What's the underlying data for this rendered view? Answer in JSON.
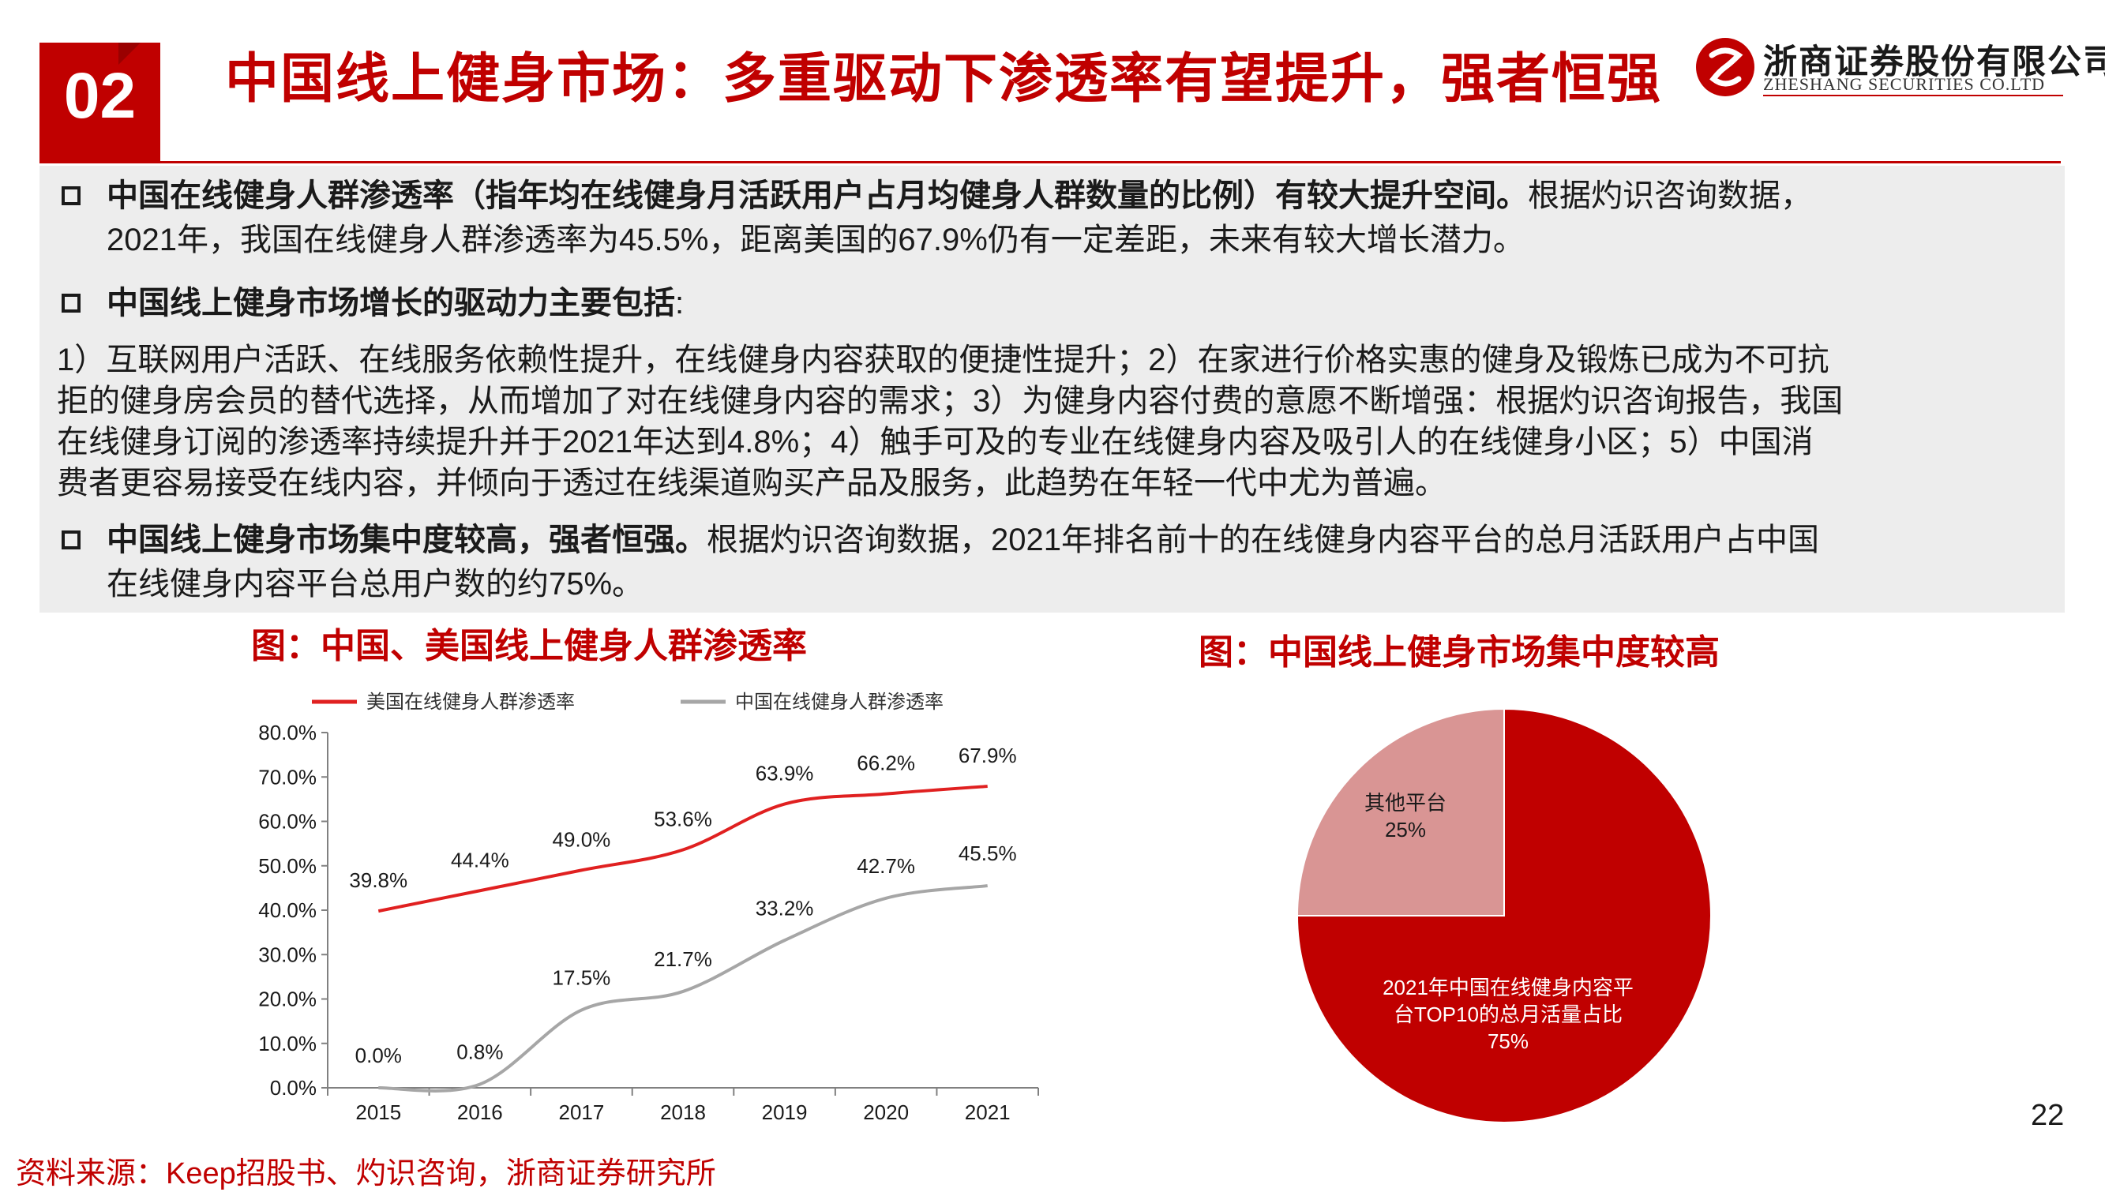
{
  "section_number": "02",
  "title": "中国线上健身市场：多重驱动下渗透率有望提升，强者恒强",
  "logo": {
    "name_cn": "浙商证券股份有限公司",
    "name_en": "ZHESHANG SECURITIES CO.LTD"
  },
  "bullet1": {
    "bold": "中国在线健身人群渗透率（指年均在线健身月活跃用户占月均健身人群数量的比例）有较大提升空间。",
    "text_a": "根据灼识咨询数据，",
    "text_b": "2021年，我国在线健身人群渗透率为45.5%，距离美国的67.9%仍有一定差距，未来有较大增长潜力。"
  },
  "bullet2": {
    "bold": "中国线上健身市场增长的驱动力主要包括",
    "colon": ":"
  },
  "drivers": [
    "1）互联网用户活跃、在线服务依赖性提升，在线健身内容获取的便捷性提升；2）在家进行价格实惠的健身及锻炼已成为不可抗",
    "拒的健身房会员的替代选择，从而增加了对在线健身内容的需求；3）为健身内容付费的意愿不断增强：根据灼识咨询报告，我国",
    "在线健身订阅的渗透率持续提升并于2021年达到4.8%；4）触手可及的专业在线健身内容及吸引人的在线健身小区；5）中国消",
    "费者更容易接受在线内容，并倾向于透过在线渠道购买产品及服务，此趋势在年轻一代中尤为普遍。"
  ],
  "bullet3": {
    "bold": "中国线上健身市场集中度较高，强者恒强。",
    "text_a": "根据灼识咨询数据，2021年排名前十的在线健身内容平台的总月活跃用户占中国",
    "text_b": "在线健身内容平台总用户数的约75%。"
  },
  "left_chart_title": "图：中国、美国线上健身人群渗透率",
  "right_chart_title": "图：中国线上健身市场集中度较高",
  "source": "资料来源：Keep招股书、灼识咨询，浙商证券研究所",
  "page_number": "22",
  "colors": {
    "accent": "#c00000",
    "us_series": "#e02020",
    "cn_series": "#a6a6a6",
    "pie_major": "#c00000",
    "pie_minor": "#d99594",
    "textbox_bg": "#ededed"
  },
  "chart_data": [
    {
      "type": "line",
      "categories": [
        "2015",
        "2016",
        "2017",
        "2018",
        "2019",
        "2020",
        "2021"
      ],
      "series": [
        {
          "name": "美国在线健身人群渗透率",
          "values": [
            39.8,
            44.4,
            49.0,
            53.6,
            63.9,
            66.2,
            67.9
          ],
          "labels": [
            "39.8%",
            "44.4%",
            "49.0%",
            "53.6%",
            "63.9%",
            "66.2%",
            "67.9%"
          ]
        },
        {
          "name": "中国在线健身人群渗透率",
          "values": [
            0.0,
            0.8,
            17.5,
            21.7,
            33.2,
            42.7,
            45.5
          ],
          "labels": [
            "0.0%",
            "0.8%",
            "17.5%",
            "21.7%",
            "33.2%",
            "42.7%",
            "45.5%"
          ]
        }
      ],
      "ylim": [
        0,
        80
      ],
      "yticks": [
        "0.0%",
        "10.0%",
        "20.0%",
        "30.0%",
        "40.0%",
        "50.0%",
        "60.0%",
        "70.0%",
        "80.0%"
      ],
      "grid": false,
      "legend": "top"
    },
    {
      "type": "pie",
      "slices": [
        {
          "label_line1": "2021年中国在线健身内容平",
          "label_line2": "台TOP10的总月活量占比",
          "value": 75,
          "value_label": "75%"
        },
        {
          "label_line1": "其他平台",
          "value": 25,
          "value_label": "25%"
        }
      ]
    }
  ]
}
